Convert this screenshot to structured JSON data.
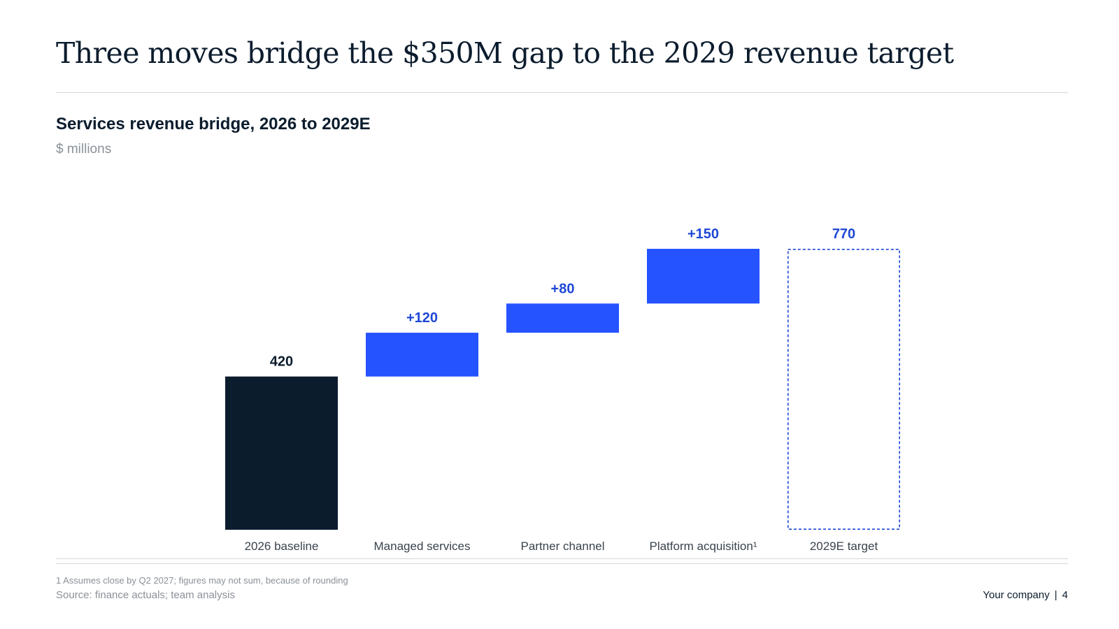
{
  "slide": {
    "title": "Three moves bridge the $350M gap to the 2029 revenue target",
    "footnote": "1 Assumes close by Q2 2027; figures may not sum, because of rounding",
    "source": "Source: finance actuals; team analysis",
    "company": "Your company",
    "separator": "|",
    "page_number": "4"
  },
  "colors": {
    "baseline": "#0b1c2d",
    "increase": "#2553ff",
    "target_outline": "#1e48d6",
    "increase_label": "#1e48d6",
    "text": "#0b1c2d",
    "muted": "#8a9199"
  },
  "chart_data": {
    "type": "bar",
    "subtype": "waterfall",
    "title": "Services revenue bridge, 2026 to 2029E",
    "subtitle": "$ millions",
    "categories": [
      "2026 baseline",
      "Managed services",
      "Partner channel",
      "Platform acquisition¹",
      "2029E target"
    ],
    "steps": [
      {
        "category": "2026 baseline",
        "kind": "total",
        "value": 420,
        "label": "420"
      },
      {
        "category": "Managed services",
        "kind": "increase",
        "value": 120,
        "label": "+120"
      },
      {
        "category": "Partner channel",
        "kind": "increase",
        "value": 80,
        "label": "+80"
      },
      {
        "category": "Platform acquisition¹",
        "kind": "increase",
        "value": 150,
        "label": "+150"
      },
      {
        "category": "2029E target",
        "kind": "target",
        "value": 770,
        "label": "770",
        "style": "dashed-outline"
      }
    ],
    "ylim": [
      0,
      770
    ],
    "grid": false,
    "legend": "none"
  }
}
